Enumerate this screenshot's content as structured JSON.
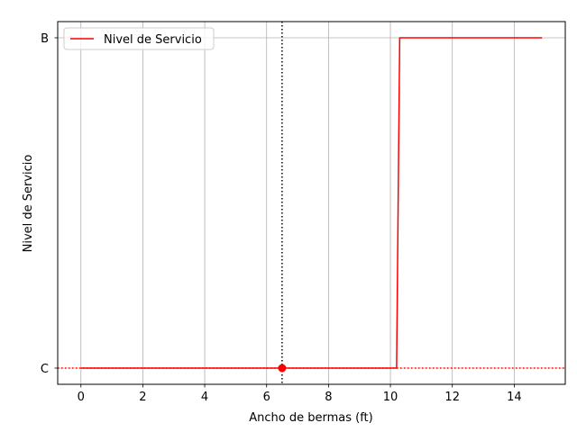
{
  "chart_data": {
    "type": "line",
    "title": "",
    "xlabel": "Ancho de bermas (ft)",
    "ylabel": "Nivel de Servicio",
    "xlim": [
      -0.75,
      15.65
    ],
    "x_ticks": [
      0,
      2,
      4,
      6,
      8,
      10,
      12,
      14
    ],
    "y_categories": [
      "C",
      "B"
    ],
    "grid": true,
    "legend_position": "upper-left",
    "series": [
      {
        "name": "Nivel de Servicio",
        "color": "#ff0000",
        "points": [
          {
            "x": 0,
            "y": "C"
          },
          {
            "x": 10.2,
            "y": "C"
          },
          {
            "x": 10.3,
            "y": "B"
          },
          {
            "x": 14.9,
            "y": "B"
          }
        ]
      }
    ],
    "vertical_reference_line": {
      "x": 6.5,
      "style": "dotted",
      "color": "#000000"
    },
    "horizontal_reference_line": {
      "y": "C",
      "style": "dotted",
      "color": "#ff0000"
    },
    "marker_point": {
      "x": 6.5,
      "y": "C",
      "color": "#ff0000"
    }
  }
}
